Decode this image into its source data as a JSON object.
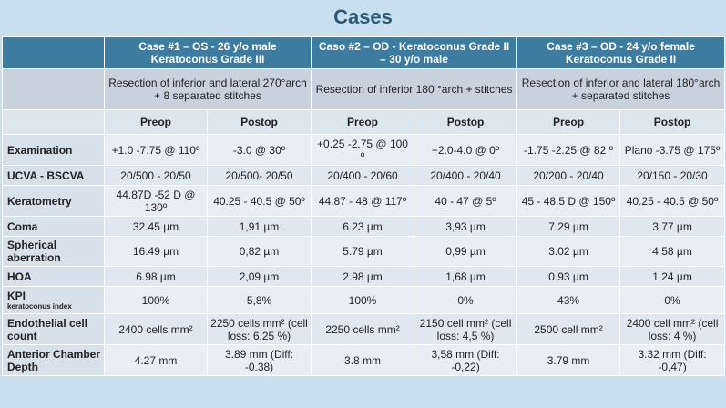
{
  "title": "Cases",
  "cases": [
    {
      "header": "Case #1 – OS - 26 y/o male Keratoconus Grade III",
      "description": "Resection of inferior and lateral 270°arch + 8 separated stitches"
    },
    {
      "header": "Caso #2 – OD - Keratoconus Grade II – 30 y/o male",
      "description": "Resection of inferior 180 °arch + stitches"
    },
    {
      "header": "Case #3 – OD - 24 y/o female Keratoconus Grade II",
      "description": "Resection of inferior and lateral 180°arch + separated stitches"
    }
  ],
  "subheaders": [
    "Preop",
    "Postop",
    "Preop",
    "Postop",
    "Preop",
    "Postop"
  ],
  "rows": [
    {
      "label": "Examination",
      "sublabel": "",
      "values": [
        "+1.0 -7.75 @ 110º",
        "-3.0 @ 30º",
        "+0.25 -2.75 @ 100 º",
        "+2.0-4.0 @ 0º",
        "-1.75 -2.25 @ 82 º",
        "Plano -3.75 @ 175º"
      ]
    },
    {
      "label": "UCVA - BSCVA",
      "sublabel": "",
      "values": [
        "20/500 - 20/50",
        "20/500- 20/50",
        "20/400 - 20/60",
        "20/400 - 20/40",
        "20/200 - 20/40",
        "20/150 - 20/30"
      ]
    },
    {
      "label": "Keratometry",
      "sublabel": "",
      "values": [
        "44.87D -52 D @ 130º",
        "40.25 - 40.5 @ 50º",
        "44.87 - 48 @ 117º",
        "40 - 47 @ 5º",
        "45 - 48.5 D @ 150º",
        "40.25 - 40.5 @ 50º"
      ]
    },
    {
      "label": "Coma",
      "sublabel": "",
      "values": [
        "32.45 µm",
        "1,91 µm",
        "6.23 µm",
        "3,93 µm",
        "7.29 µm",
        "3,77 µm"
      ]
    },
    {
      "label": "Spherical aberration",
      "sublabel": "",
      "values": [
        "16.49 µm",
        "0,82 µm",
        "5.79 µm",
        "0,99 µm",
        "3.02 µm",
        "4,58 µm"
      ]
    },
    {
      "label": "HOA",
      "sublabel": "",
      "values": [
        "6.98 µm",
        "2,09 µm",
        "2.98 µm",
        "1,68 µm",
        "0.93 µm",
        "1,24 µm"
      ]
    },
    {
      "label": "KPI",
      "sublabel": "keratoconus index",
      "values": [
        "100%",
        "5,8%",
        "100%",
        "0%",
        "43%",
        "0%"
      ]
    },
    {
      "label": "Endothelial cell count",
      "sublabel": "",
      "values": [
        "2400 cells mm²",
        "2250 cells mm² (cell loss: 6.25 %)",
        "2250 cells mm²",
        "2150 cell mm² (cell loss: 4,5 %)",
        "2500 cell mm²",
        "2400 cell mm² (cell loss: 4 %)"
      ]
    },
    {
      "label": "Anterior Chamber Depth",
      "sublabel": "",
      "values": [
        "4.27 mm",
        "3.89 mm (Diff: -0.38)",
        "3.8 mm",
        "3,58 mm (Diff: -0,22)",
        "3.79 mm",
        "3.32 mm (Diff: -0,47)"
      ]
    }
  ]
}
